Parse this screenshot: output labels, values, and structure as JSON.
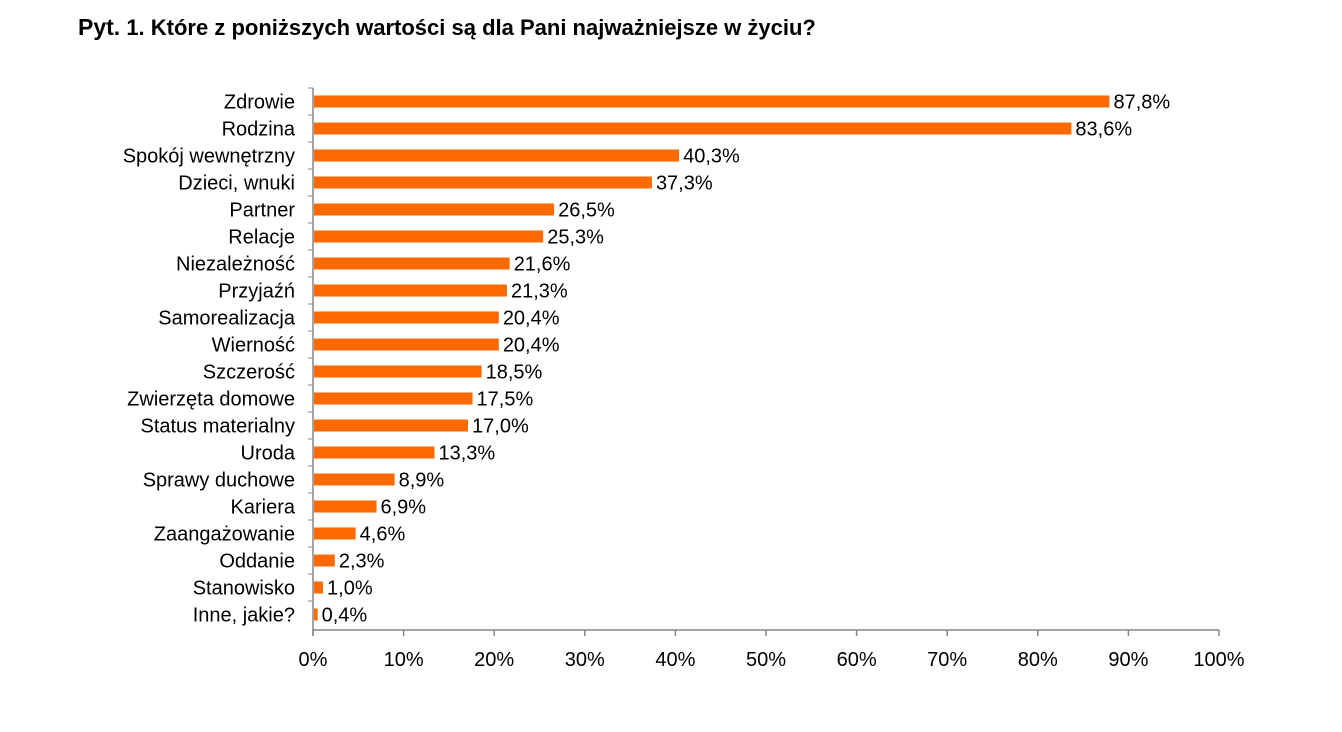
{
  "title": {
    "prefix": "Pyt.",
    "text": "1. Które z poniższych wartości są dla Pani najważniejsze w życiu?"
  },
  "colors": {
    "bar": "#ff6a00",
    "axis": "#868686"
  },
  "chart_data": {
    "type": "bar",
    "orientation": "horizontal",
    "categories": [
      "Zdrowie",
      "Rodzina",
      "Spokój wewnętrzny",
      "Dzieci, wnuki",
      "Partner",
      "Relacje",
      "Niezależność",
      "Przyjaźń",
      "Samorealizacja",
      "Wierność",
      "Szczerość",
      "Zwierzęta domowe",
      "Status materialny",
      "Uroda",
      "Sprawy duchowe",
      "Kariera",
      "Zaangażowanie",
      "Oddanie",
      "Stanowisko",
      "Inne, jakie?"
    ],
    "values": [
      87.8,
      83.6,
      40.3,
      37.3,
      26.5,
      25.3,
      21.6,
      21.3,
      20.4,
      20.4,
      18.5,
      17.5,
      17.0,
      13.3,
      8.9,
      6.9,
      4.6,
      2.3,
      1.0,
      0.4
    ],
    "value_labels": [
      "87,8%",
      "83,6%",
      "40,3%",
      "37,3%",
      "26,5%",
      "25,3%",
      "21,6%",
      "21,3%",
      "20,4%",
      "20,4%",
      "18,5%",
      "17,5%",
      "17,0%",
      "13,3%",
      "8,9%",
      "6,9%",
      "4,6%",
      "2,3%",
      "1,0%",
      "0,4%"
    ],
    "x_ticks": [
      "0%",
      "10%",
      "20%",
      "30%",
      "40%",
      "50%",
      "60%",
      "70%",
      "80%",
      "90%",
      "100%"
    ],
    "xlim": [
      0,
      100
    ],
    "xlabel": "",
    "ylabel": "",
    "grid": false,
    "legend": "none"
  }
}
